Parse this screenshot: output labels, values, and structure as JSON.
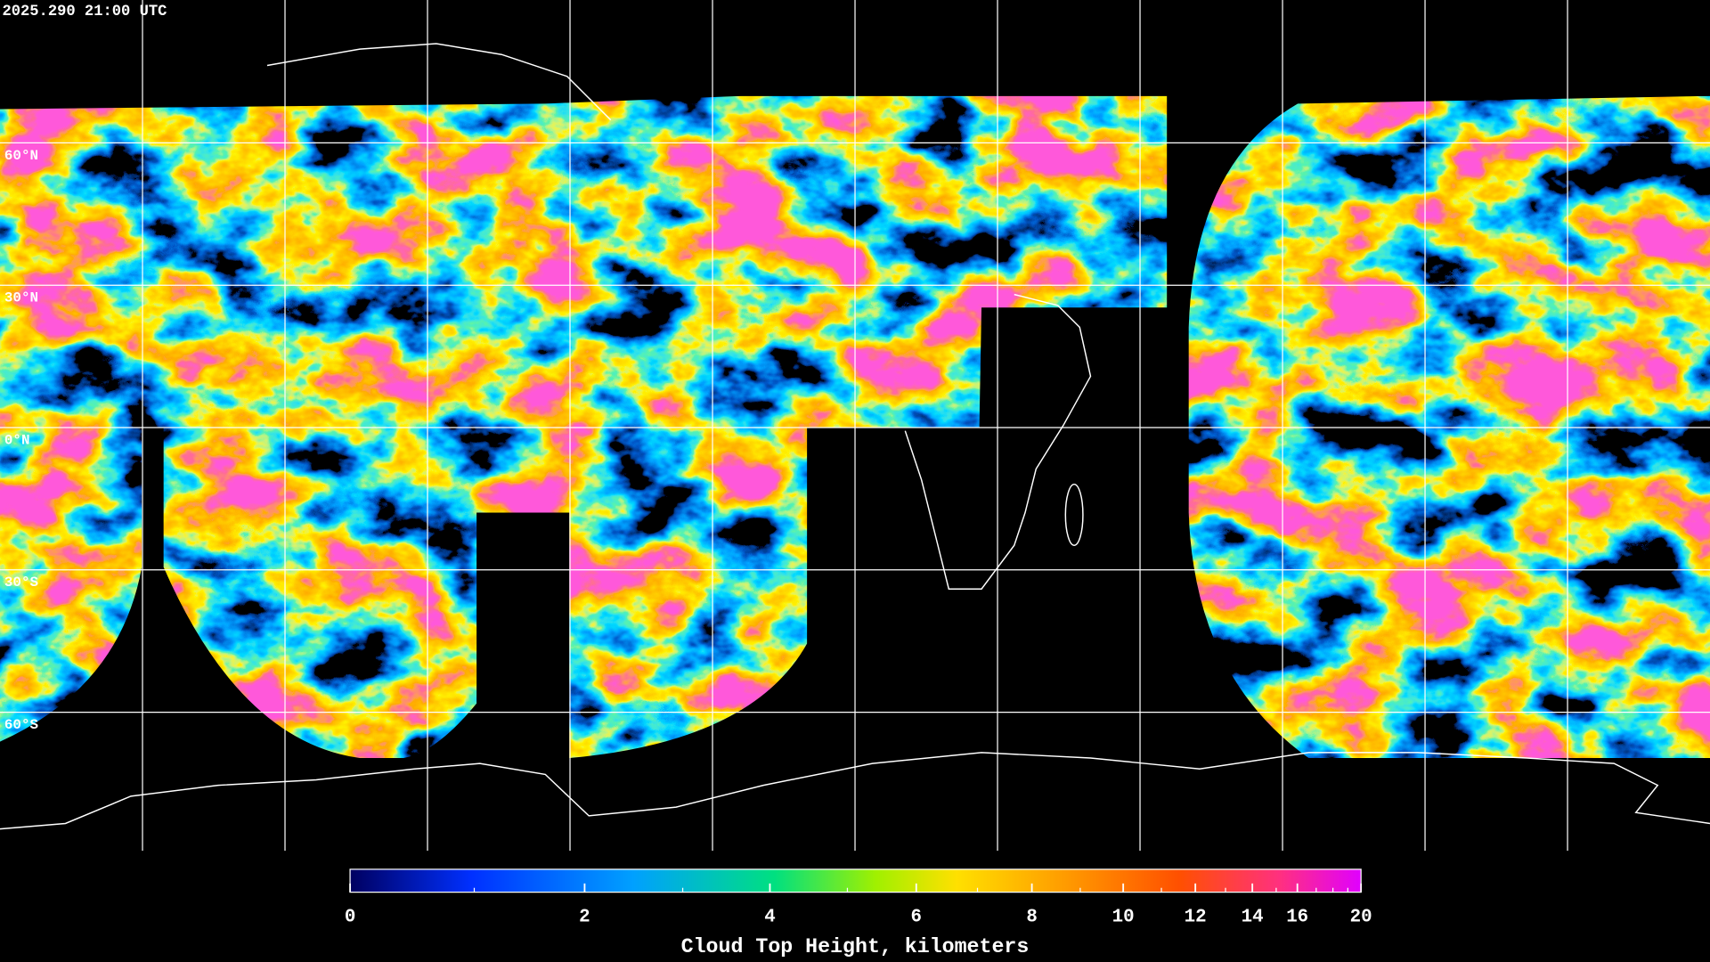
{
  "timestamp": "2025.290 21:00 UTC",
  "map": {
    "lat_labels": [
      "60°N",
      "30°N",
      "0°N",
      "30°S",
      "60°S"
    ]
  },
  "colorbar": {
    "label": "Cloud Top Height, kilometers",
    "range": [
      0,
      20
    ],
    "ticks": [
      0,
      2,
      4,
      6,
      8,
      10,
      12,
      14,
      16,
      20
    ],
    "minor_ticks": [
      1,
      3,
      5,
      7,
      9,
      11,
      13,
      15,
      17,
      18,
      19
    ]
  }
}
